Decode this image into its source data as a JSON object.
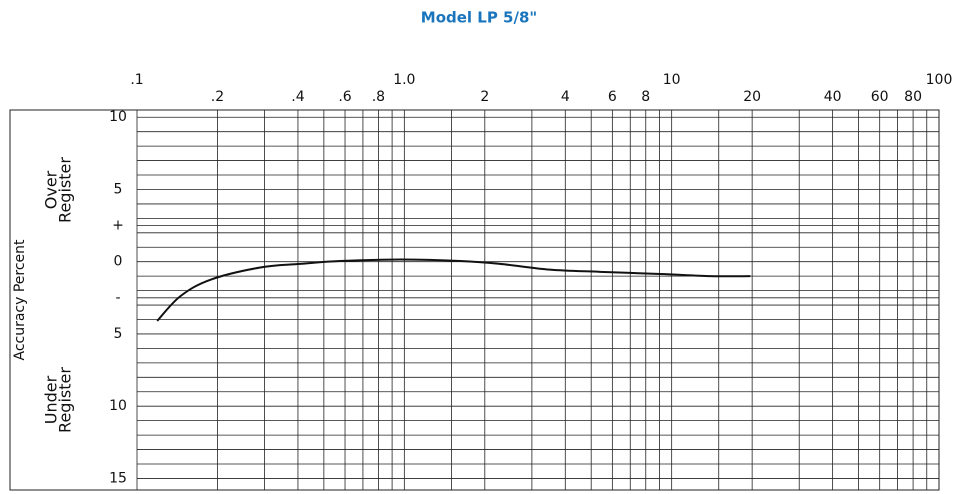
{
  "chart_data": {
    "type": "line",
    "title": "Model LP 5/8\"",
    "y_label": "Accuracy Percent",
    "over_label": [
      "Over",
      "Register"
    ],
    "under_label": [
      "Under",
      "Register"
    ],
    "xscale": "log",
    "xlim": [
      0.1,
      100
    ],
    "ylim": [
      -15.8,
      10.5
    ],
    "xticks": [
      {
        "value": 0.1,
        "label": ".1"
      },
      {
        "value": 0.2,
        "label": ".2"
      },
      {
        "value": 0.3,
        "label": null
      },
      {
        "value": 0.4,
        "label": ".4"
      },
      {
        "value": 0.5,
        "label": null
      },
      {
        "value": 0.6,
        "label": ".6"
      },
      {
        "value": 0.7,
        "label": null
      },
      {
        "value": 0.8,
        "label": ".8"
      },
      {
        "value": 0.9,
        "label": null
      },
      {
        "value": 1,
        "label": "1.0"
      },
      {
        "value": 1.5,
        "label": null
      },
      2,
      {
        "value": 3,
        "label": null
      },
      4,
      {
        "value": 5,
        "label": null
      },
      6,
      {
        "value": 7,
        "label": null
      },
      8,
      {
        "value": 9,
        "label": null
      },
      10,
      {
        "value": 15,
        "label": null
      },
      20,
      {
        "value": 30,
        "label": null
      },
      40,
      {
        "value": 50,
        "label": null
      },
      60,
      {
        "value": 70,
        "label": null
      },
      80,
      {
        "value": 90,
        "label": null
      },
      100
    ],
    "yticks": [
      10,
      {
        "value": 9,
        "label": null
      },
      {
        "value": 8,
        "label": null
      },
      {
        "value": 7,
        "label": null
      },
      {
        "value": 6,
        "label": null
      },
      5,
      {
        "value": 4,
        "label": null
      },
      {
        "value": 3,
        "label": null
      },
      {
        "value": 2.5,
        "label": "+"
      },
      {
        "value": 2,
        "label": null
      },
      {
        "value": 1,
        "label": null
      },
      0,
      {
        "value": -1,
        "label": null
      },
      {
        "value": -2,
        "label": null
      },
      {
        "value": -2.5,
        "label": "-"
      },
      {
        "value": -3,
        "label": null
      },
      {
        "value": -4,
        "label": null
      },
      {
        "value": -5,
        "label": "5"
      },
      {
        "value": -6,
        "label": null
      },
      {
        "value": -7,
        "label": null
      },
      {
        "value": -8,
        "label": null
      },
      {
        "value": -9,
        "label": null
      },
      {
        "value": -10,
        "label": "10"
      },
      {
        "value": -11,
        "label": null
      },
      {
        "value": -12,
        "label": null
      },
      {
        "value": -13,
        "label": null
      },
      {
        "value": -14,
        "label": null
      },
      {
        "value": -15,
        "label": "15"
      }
    ],
    "grid": true,
    "series": [
      {
        "name": null,
        "color": "#111111",
        "x": [
          0.119,
          0.145,
          0.188,
          0.289,
          0.408,
          0.575,
          0.97,
          1.62,
          2.28,
          3.5,
          5.4,
          9.1,
          14,
          19.7
        ],
        "values": [
          -4.1,
          -2.4,
          -1.25,
          -0.4,
          -0.15,
          0.05,
          0.15,
          0.05,
          -0.15,
          -0.55,
          -0.7,
          -0.85,
          -1.0,
          -1.0
        ]
      }
    ]
  }
}
